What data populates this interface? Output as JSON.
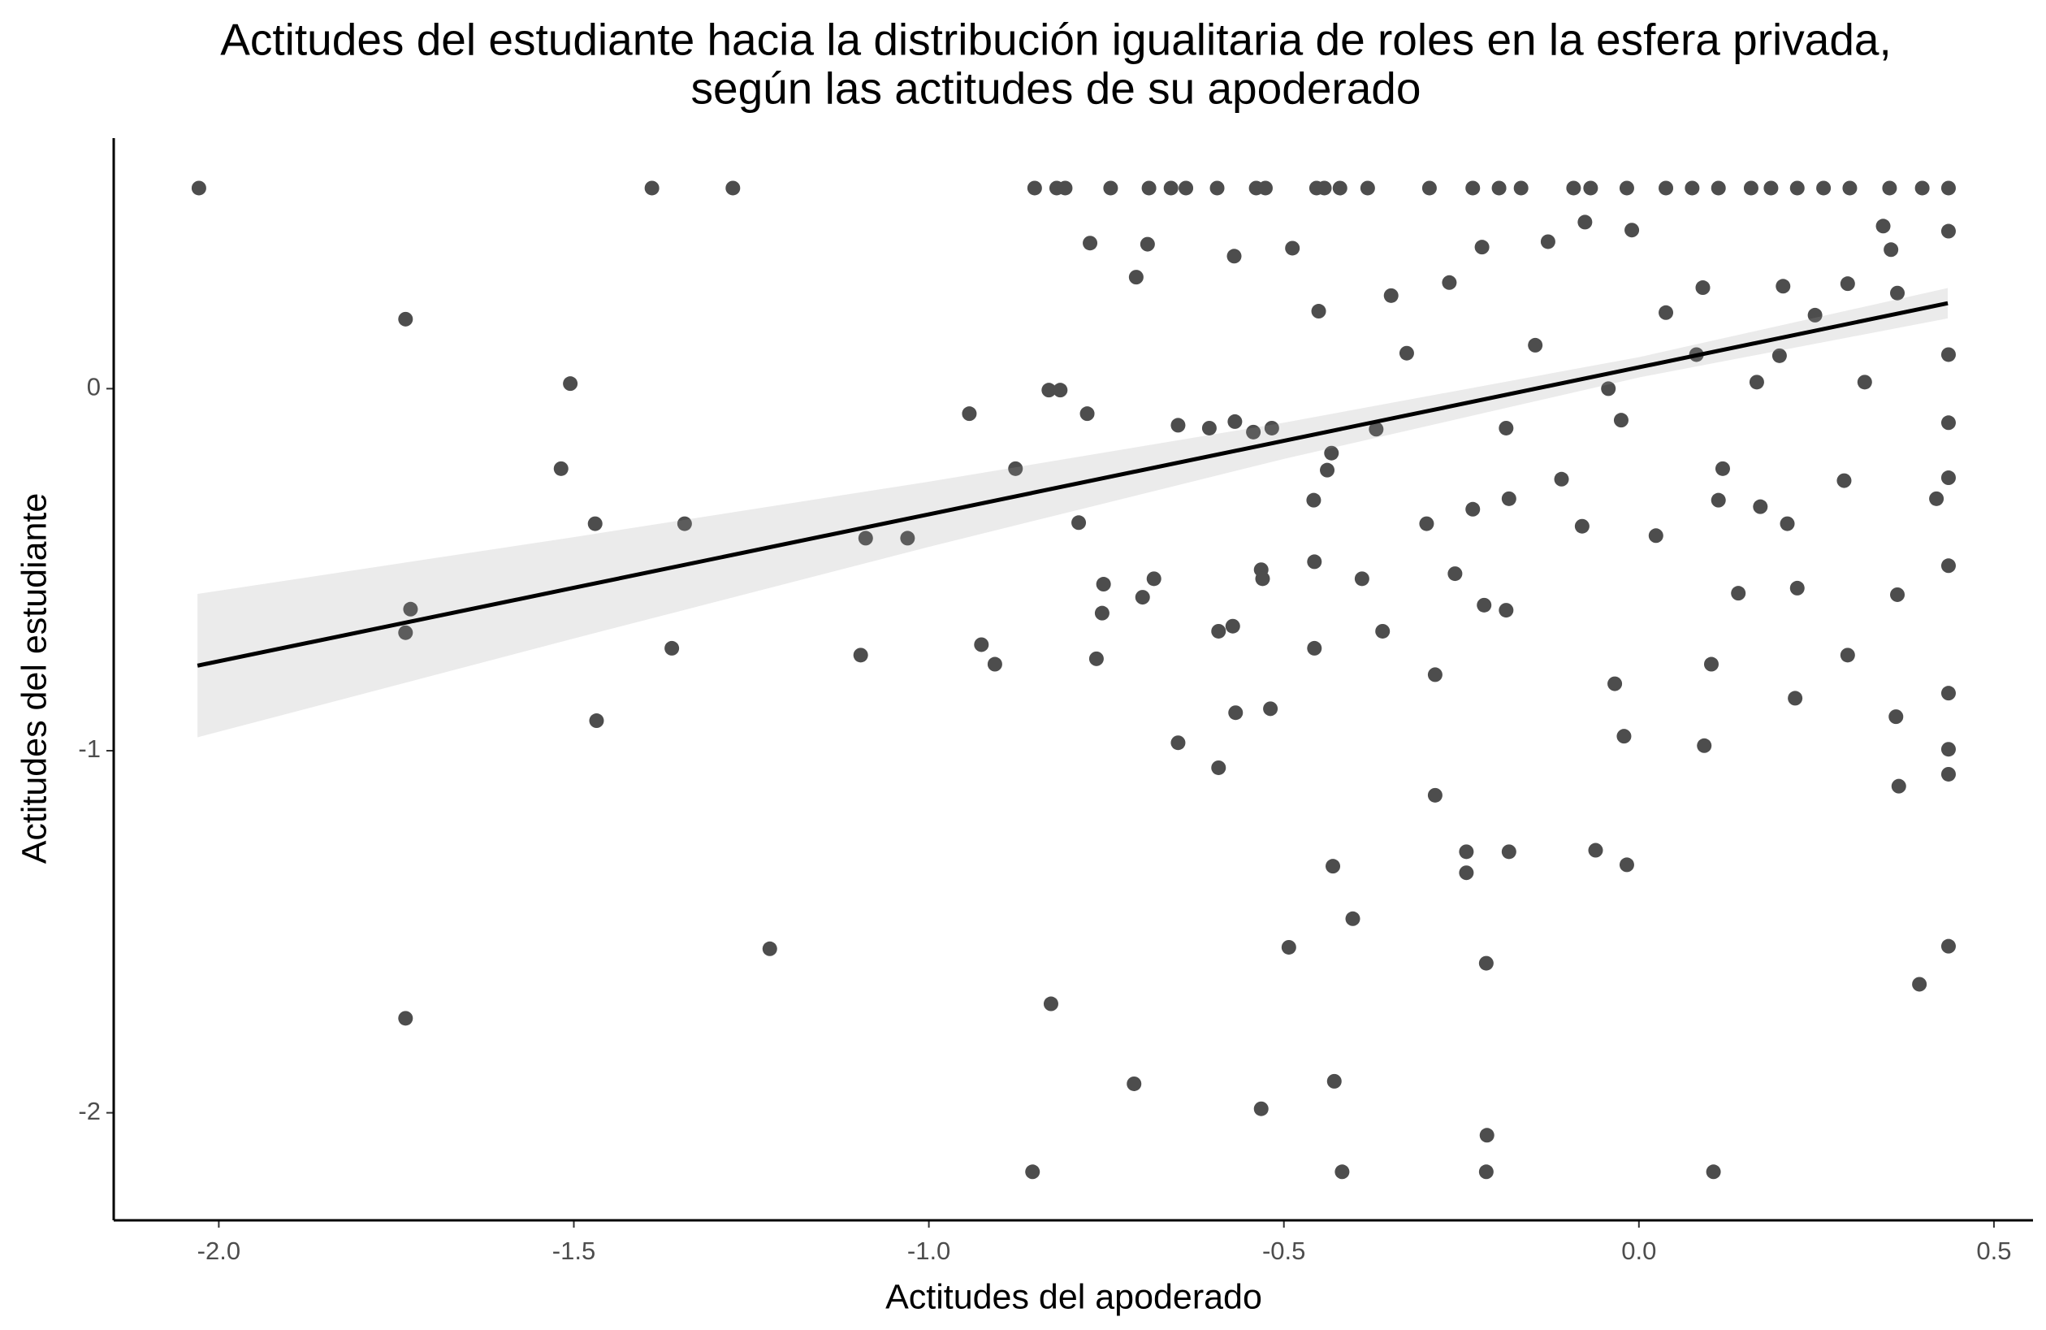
{
  "chart_data": {
    "type": "scatter",
    "title": [
      "Actitudes del estudiante hacia la distribución igualitaria de roles en la esfera privada,",
      "según las actitudes de su apoderado"
    ],
    "x_label": "Actitudes del apoderado",
    "y_label": "Actitudes del estudiante",
    "xlim": [
      -2.148,
      0.555
    ],
    "ylim": [
      -2.297,
      0.692
    ],
    "xticks": [
      {
        "value": -2.0,
        "label": "-2.0"
      },
      {
        "value": -1.5,
        "label": "-1.5"
      },
      {
        "value": -1.0,
        "label": "-1.0"
      },
      {
        "value": -0.5,
        "label": "-0.5"
      },
      {
        "value": 0,
        "label": "0.0"
      },
      0.5
    ],
    "yticks": [
      0,
      -1,
      -2
    ],
    "grid": false,
    "color": "#4d4d4d",
    "x": [
      -2.028,
      -1.39,
      -1.276,
      -0.851,
      -0.82,
      -0.808,
      -0.744,
      -0.69,
      -0.659,
      -0.638,
      -0.594,
      -0.539,
      -0.526,
      -0.454,
      -0.443,
      -0.421,
      -0.382,
      -0.295,
      -0.234,
      -0.197,
      -0.166,
      -0.092,
      -0.068,
      -0.017,
      0.038,
      0.075,
      0.112,
      0.158,
      0.186,
      0.223,
      0.26,
      0.297,
      0.353,
      0.399,
      0.436,
      -1.737,
      -1.505,
      -1.518,
      -1.47,
      -1.344,
      -1.73,
      -1.737,
      -1.362,
      -1.468,
      -1.737,
      -1.224,
      -0.943,
      -0.878,
      -1.089,
      -1.03,
      -1.096,
      -0.926,
      -0.907,
      -0.828,
      -0.854,
      -0.711,
      -0.831,
      -0.815,
      -0.777,
      -0.789,
      -0.754,
      -0.756,
      -0.764,
      -0.683,
      -0.699,
      -0.649,
      -0.649,
      -0.605,
      -0.592,
      -0.569,
      -0.543,
      -0.517,
      -0.572,
      -0.592,
      -0.568,
      -0.532,
      -0.53,
      -0.519,
      -0.532,
      -0.493,
      -0.457,
      -0.458,
      -0.457,
      -0.431,
      -0.429,
      -0.418,
      -0.403,
      -0.439,
      -0.433,
      -0.37,
      -0.39,
      -0.361,
      -0.299,
      -0.327,
      -0.287,
      -0.287,
      -0.243,
      -0.243,
      -0.215,
      -0.214,
      -0.215,
      -0.183,
      -0.234,
      -0.183,
      -0.146,
      -0.109,
      -0.08,
      -0.061,
      -0.017,
      -0.021,
      -0.076,
      -0.01,
      -0.025,
      -0.043,
      0.038,
      0.09,
      0.092,
      0.105,
      0.102,
      0.112,
      0.118,
      0.166,
      0.209,
      0.22,
      0.289,
      0.294,
      0.318,
      0.364,
      0.366,
      0.362,
      0.395,
      0.419,
      0.436,
      0.436,
      0.436,
      0.436,
      0.436,
      0.436,
      0.436,
      0.436,
      0.436,
      0.364,
      0.355,
      0.344,
      0.248,
      0.198,
      -0.128,
      -0.221,
      -0.267,
      -0.349,
      -0.451,
      -0.488,
      -0.57,
      -0.692,
      -0.773,
      -0.708,
      -0.187,
      -0.259,
      -0.218,
      -0.187,
      0.024,
      -0.034,
      0.171,
      0.14,
      0.223,
      0.081,
      0.294,
      0.203
    ],
    "values": [
      0.554,
      0.554,
      0.554,
      0.554,
      0.554,
      0.554,
      0.554,
      0.554,
      0.554,
      0.554,
      0.554,
      0.554,
      0.554,
      0.554,
      0.554,
      0.554,
      0.554,
      0.554,
      0.554,
      0.554,
      0.554,
      0.554,
      0.554,
      0.554,
      0.554,
      0.554,
      0.554,
      0.554,
      0.554,
      0.554,
      0.554,
      0.554,
      0.554,
      0.554,
      0.554,
      0.192,
      0.014,
      -0.221,
      -0.373,
      -0.373,
      -0.609,
      -0.674,
      -0.717,
      -0.917,
      -1.739,
      -1.547,
      -0.069,
      -0.221,
      -0.413,
      -0.413,
      -0.736,
      -0.707,
      -0.761,
      -1.699,
      -2.163,
      -1.92,
      -0.004,
      -0.004,
      -0.069,
      -0.37,
      -0.54,
      -0.62,
      -0.746,
      -0.525,
      -0.576,
      -0.978,
      -0.101,
      -0.109,
      -1.047,
      -0.091,
      -0.12,
      -0.109,
      -0.656,
      -0.67,
      -0.895,
      -0.5,
      -0.525,
      -0.884,
      -1.989,
      -1.543,
      -0.478,
      -0.308,
      -0.717,
      -1.319,
      -1.913,
      -2.163,
      -1.464,
      -0.225,
      -0.178,
      -0.112,
      -0.525,
      -0.67,
      -0.373,
      0.098,
      -0.79,
      -1.123,
      -1.337,
      -1.279,
      -1.587,
      -2.062,
      -2.163,
      -1.279,
      -0.333,
      -0.304,
      0.12,
      -0.25,
      -0.38,
      -1.275,
      -1.315,
      -0.96,
      0.46,
      0.438,
      -0.087,
      0.0,
      0.21,
      0.279,
      -0.986,
      -2.163,
      -0.761,
      -0.308,
      -0.221,
      0.018,
      -0.373,
      -0.855,
      -0.254,
      -0.736,
      0.018,
      -0.569,
      -1.098,
      -0.906,
      -1.645,
      -0.304,
      -1.54,
      -1.065,
      -0.996,
      -0.841,
      -0.489,
      -0.246,
      -0.094,
      0.094,
      0.435,
      0.264,
      0.384,
      0.449,
      0.203,
      0.091,
      0.406,
      0.391,
      0.293,
      0.257,
      0.214,
      0.388,
      0.366,
      0.399,
      0.402,
      0.308,
      -0.109,
      -0.511,
      -0.598,
      -0.612,
      -0.406,
      -0.815,
      -0.326,
      -0.565,
      -0.551,
      0.094,
      0.29,
      0.283
    ],
    "fit": {
      "color": "#000000",
      "band_color": "#999999",
      "x": [
        -2.03,
        -1.5,
        -1.0,
        -0.5,
        0,
        0.435
      ],
      "values": [
        -0.765,
        -0.55,
        -0.347,
        -0.144,
        0.059,
        0.236
      ],
      "lower": [
        -0.963,
        -0.69,
        -0.437,
        -0.194,
        0.031,
        0.194
      ],
      "upper": [
        -0.567,
        -0.41,
        -0.257,
        -0.094,
        0.087,
        0.278
      ]
    }
  }
}
